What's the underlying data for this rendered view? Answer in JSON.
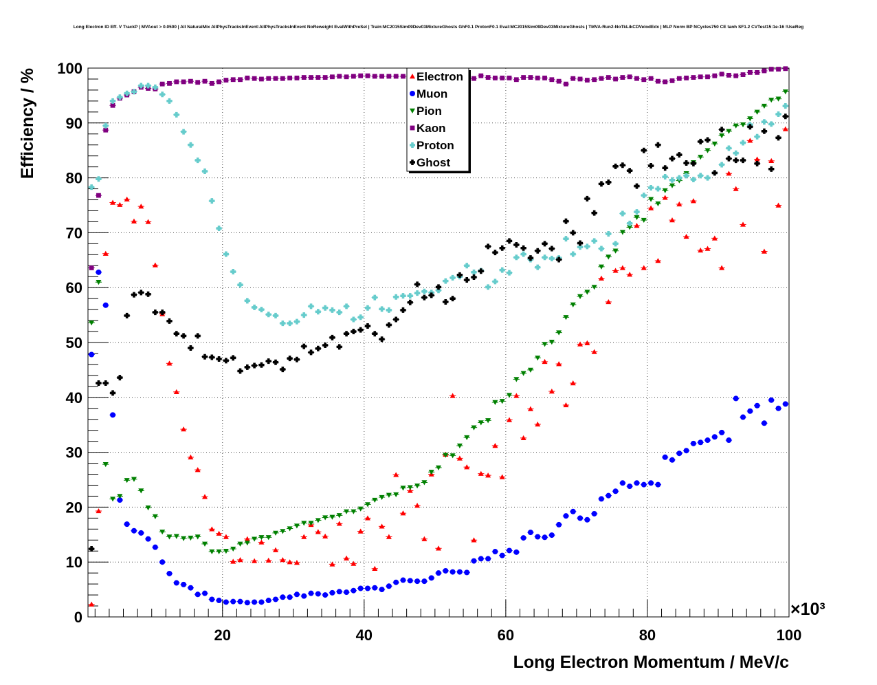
{
  "chart_data": {
    "type": "scatter",
    "title": "Long Electron ID Eff. V TrackP | MVAout > 0.0500 | All NaturalMix AllPhysTracksInEvent:AllPhysTracksInEvent NoReweight EvalWithPreSel | Train:MC2015Sim09Dev03MixtureGhosts GhF0.1 ProtonF0.1 Eval:MC2015Sim09Dev03MixtureGhosts | TMVA-Run2-NoTkLikCDVelodEdx | MLP Norm BP NCycles750 CE tanh SF1.2 CVTest15:1e-16 !UseReg",
    "xlabel": "Long Electron Momentum / MeV/c",
    "ylabel": "Efficiency / %",
    "x_multiplier": "×10³",
    "xlim": [
      1,
      100
    ],
    "ylim": [
      0,
      100
    ],
    "x_ticks": [
      20,
      40,
      60,
      80,
      100
    ],
    "y_ticks": [
      0,
      10,
      20,
      30,
      40,
      50,
      60,
      70,
      80,
      90,
      100
    ],
    "grid": true,
    "legend_position": "top-center",
    "x": [
      1.5,
      2.5,
      3.5,
      4.5,
      5.5,
      6.5,
      7.5,
      8.5,
      9.5,
      10.5,
      11.5,
      12.5,
      13.5,
      14.5,
      15.5,
      16.5,
      17.5,
      18.5,
      19.5,
      20.5,
      21.5,
      22.5,
      23.5,
      24.5,
      25.5,
      26.5,
      27.5,
      28.5,
      29.5,
      30.5,
      31.5,
      32.5,
      33.5,
      34.5,
      35.5,
      36.5,
      37.5,
      38.5,
      39.5,
      40.5,
      41.5,
      42.5,
      43.5,
      44.5,
      45.5,
      46.5,
      47.5,
      48.5,
      49.5,
      50.5,
      51.5,
      52.5,
      53.5,
      54.5,
      55.5,
      56.5,
      57.5,
      58.5,
      59.5,
      60.5,
      61.5,
      62.5,
      63.5,
      64.5,
      65.5,
      66.5,
      67.5,
      68.5,
      69.5,
      70.5,
      71.5,
      72.5,
      73.5,
      74.5,
      75.5,
      76.5,
      77.5,
      78.5,
      79.5,
      80.5,
      81.5,
      82.5,
      83.5,
      84.5,
      85.5,
      86.5,
      87.5,
      88.5,
      89.5,
      90.5,
      91.5,
      92.5,
      93.5,
      94.5,
      95.5,
      96.5,
      97.5,
      98.5,
      99.5
    ],
    "series": [
      {
        "name": "Electron",
        "color": "#ff0000",
        "marker": "triangle-up",
        "values": [
          2.3,
          19.3,
          66.2,
          75.5,
          75.1,
          76.1,
          72.1,
          74.8,
          72.0,
          64.1,
          55.2,
          46.2,
          41.0,
          34.2,
          29.1,
          26.8,
          21.9,
          16.0,
          15.2,
          14.6,
          10.1,
          10.4,
          14.2,
          10.2,
          13.6,
          10.3,
          12.2,
          10.4,
          10.0,
          9.9,
          14.6,
          16.8,
          15.5,
          14.7,
          9.6,
          17.0,
          10.7,
          9.7,
          15.6,
          18.0,
          8.8,
          16.5,
          14.6,
          25.9,
          18.9,
          23.0,
          20.3,
          14.2,
          26.0,
          12.5,
          29.6,
          40.3,
          28.9,
          27.3,
          14.0,
          26.1,
          25.8,
          31.2,
          25.5,
          35.9,
          40.3,
          32.6,
          37.9,
          35.1,
          46.5,
          41.1,
          46.1,
          38.6,
          42.6,
          49.7,
          49.9,
          48.3,
          61.7,
          57.4,
          63.1,
          63.6,
          62.4,
          71.3,
          63.6,
          74.5,
          64.9,
          76.4,
          72.3,
          75.2,
          69.3,
          75.8,
          66.8,
          67.1,
          69.0,
          63.6,
          80.8,
          78.0,
          71.5,
          86.8,
          83.4,
          66.6,
          83.1,
          75.0,
          88.9
        ]
      },
      {
        "name": "Muon",
        "color": "#0000ff",
        "marker": "circle",
        "values": [
          47.8,
          62.8,
          56.8,
          36.8,
          21.3,
          16.9,
          15.7,
          15.3,
          14.2,
          12.7,
          10.0,
          7.9,
          6.2,
          5.9,
          5.3,
          4.1,
          4.3,
          3.2,
          3.0,
          2.7,
          2.8,
          2.8,
          2.6,
          2.7,
          2.7,
          3.0,
          3.2,
          3.6,
          3.6,
          4.1,
          3.8,
          4.3,
          4.2,
          4.0,
          4.4,
          4.6,
          4.5,
          4.8,
          5.2,
          5.2,
          5.3,
          5.0,
          5.6,
          6.3,
          6.7,
          6.6,
          6.5,
          6.5,
          7.1,
          8.0,
          8.4,
          8.2,
          8.2,
          8.1,
          10.2,
          10.6,
          10.6,
          11.9,
          11.2,
          12.1,
          11.8,
          14.4,
          15.4,
          14.6,
          14.5,
          14.9,
          16.8,
          18.4,
          19.2,
          18.0,
          17.7,
          18.8,
          21.5,
          22.1,
          22.9,
          24.4,
          23.8,
          24.4,
          24.1,
          24.4,
          24.1,
          29.1,
          28.6,
          29.8,
          30.3,
          31.6,
          31.8,
          32.2,
          32.8,
          33.6,
          32.2,
          39.8,
          36.4,
          37.5,
          38.5,
          35.3,
          39.5,
          38.0,
          38.8
        ]
      },
      {
        "name": "Pion",
        "color": "#008000",
        "marker": "triangle-down",
        "values": [
          53.6,
          61.0,
          27.8,
          21.5,
          22.0,
          24.9,
          25.1,
          23.0,
          19.9,
          18.3,
          15.5,
          14.6,
          14.7,
          14.3,
          14.4,
          14.6,
          13.3,
          11.9,
          11.9,
          12.0,
          12.4,
          13.3,
          13.5,
          14.2,
          14.5,
          14.5,
          15.3,
          15.6,
          16.1,
          16.6,
          17.1,
          17.1,
          17.6,
          18.1,
          18.2,
          18.5,
          19.2,
          19.2,
          19.7,
          20.5,
          21.3,
          21.8,
          22.2,
          22.3,
          23.5,
          23.6,
          23.9,
          24.5,
          26.4,
          27.2,
          29.5,
          29.4,
          31.2,
          32.7,
          34.5,
          35.4,
          35.8,
          39.1,
          39.3,
          40.4,
          43.3,
          44.4,
          45.0,
          47.2,
          49.7,
          50.1,
          51.8,
          54.6,
          56.9,
          58.4,
          59.2,
          60.1,
          63.8,
          65.6,
          66.7,
          70.1,
          71.0,
          72.8,
          72.3,
          76.1,
          75.3,
          77.7,
          78.6,
          79.5,
          80.8,
          82.8,
          83.8,
          85.0,
          86.2,
          87.7,
          88.5,
          89.5,
          89.7,
          90.8,
          92.0,
          93.1,
          94.2,
          94.4,
          95.7
        ]
      },
      {
        "name": "Kaon",
        "color": "#800080",
        "marker": "square",
        "values": [
          63.6,
          76.8,
          88.7,
          93.2,
          94.5,
          95.1,
          95.7,
          96.5,
          96.3,
          96.2,
          97.1,
          97.2,
          97.5,
          97.5,
          97.6,
          97.4,
          97.6,
          97.2,
          97.5,
          97.8,
          97.9,
          97.9,
          98.2,
          98.1,
          98.0,
          98.1,
          98.1,
          98.1,
          98.2,
          98.2,
          98.3,
          98.3,
          98.3,
          98.3,
          98.4,
          98.5,
          98.4,
          98.5,
          98.6,
          98.6,
          98.5,
          98.5,
          98.5,
          98.5,
          98.5,
          98.6,
          98.5,
          98.4,
          98.4,
          98.2,
          98.3,
          98.5,
          98.5,
          98.3,
          98.1,
          98.6,
          98.3,
          98.2,
          98.2,
          98.2,
          97.9,
          98.3,
          98.3,
          98.2,
          98.2,
          97.9,
          97.6,
          97.1,
          98.1,
          98.0,
          97.8,
          97.9,
          98.1,
          98.3,
          98.0,
          98.3,
          98.4,
          98.1,
          97.9,
          98.1,
          97.6,
          97.5,
          97.7,
          98.1,
          98.2,
          98.3,
          98.4,
          98.4,
          98.6,
          98.9,
          98.7,
          98.6,
          98.8,
          99.2,
          99.2,
          99.5,
          99.8,
          99.8,
          99.9
        ]
      },
      {
        "name": "Proton",
        "color": "#66cccc",
        "marker": "cross",
        "values": [
          78.3,
          79.8,
          89.5,
          94.0,
          94.7,
          95.4,
          95.7,
          96.8,
          96.8,
          96.5,
          95.2,
          94.0,
          91.5,
          88.4,
          86.0,
          83.2,
          81.2,
          75.8,
          70.8,
          66.1,
          62.9,
          60.5,
          57.6,
          56.4,
          56.0,
          55.1,
          54.9,
          53.5,
          53.5,
          53.8,
          55.0,
          56.6,
          55.6,
          56.3,
          55.9,
          55.5,
          56.6,
          54.2,
          54.6,
          56.3,
          58.2,
          56.1,
          55.9,
          58.3,
          58.5,
          58.5,
          59.0,
          59.3,
          59.1,
          59.5,
          61.2,
          61.8,
          62.0,
          64.0,
          62.8,
          63.1,
          60.1,
          61.1,
          63.2,
          62.7,
          65.5,
          66.1,
          65.1,
          63.7,
          65.5,
          65.3,
          65.4,
          68.9,
          66.1,
          67.4,
          67.5,
          68.5,
          67.1,
          69.8,
          68.0,
          73.5,
          71.7,
          73.8,
          76.8,
          78.2,
          78.0,
          80.2,
          79.6,
          80.0,
          80.4,
          79.7,
          80.4,
          80.0,
          80.9,
          82.4,
          85.4,
          84.5,
          86.4,
          89.7,
          87.5,
          90.2,
          89.8,
          91.6,
          93.1
        ]
      },
      {
        "name": "Ghost",
        "color": "#000000",
        "marker": "cross",
        "values": [
          12.4,
          42.6,
          42.6,
          40.8,
          43.6,
          54.9,
          58.7,
          59.1,
          58.8,
          55.5,
          55.5,
          53.9,
          51.6,
          51.2,
          49.0,
          51.2,
          47.4,
          47.3,
          47.0,
          46.7,
          47.2,
          44.8,
          45.5,
          45.8,
          45.9,
          46.6,
          46.4,
          45.1,
          47.1,
          46.9,
          49.3,
          48.2,
          48.9,
          49.5,
          50.9,
          49.2,
          51.6,
          52.0,
          52.3,
          53.0,
          51.6,
          50.6,
          53.2,
          54.2,
          55.9,
          57.3,
          60.6,
          58.2,
          58.6,
          60.1,
          57.4,
          58.0,
          62.3,
          61.4,
          61.9,
          63.0,
          67.5,
          66.4,
          67.2,
          68.5,
          67.8,
          67.2,
          65.4,
          66.7,
          68.0,
          67.1,
          65.1,
          72.1,
          70.0,
          68.1,
          76.2,
          73.6,
          78.9,
          79.2,
          82.1,
          82.3,
          81.3,
          78.5,
          85.0,
          82.2,
          86.0,
          81.8,
          83.5,
          84.2,
          82.7,
          82.6,
          86.6,
          86.9,
          80.9,
          88.8,
          83.5,
          83.2,
          83.2,
          89.3,
          82.6,
          88.5,
          81.6,
          87.3,
          91.2
        ]
      }
    ]
  }
}
